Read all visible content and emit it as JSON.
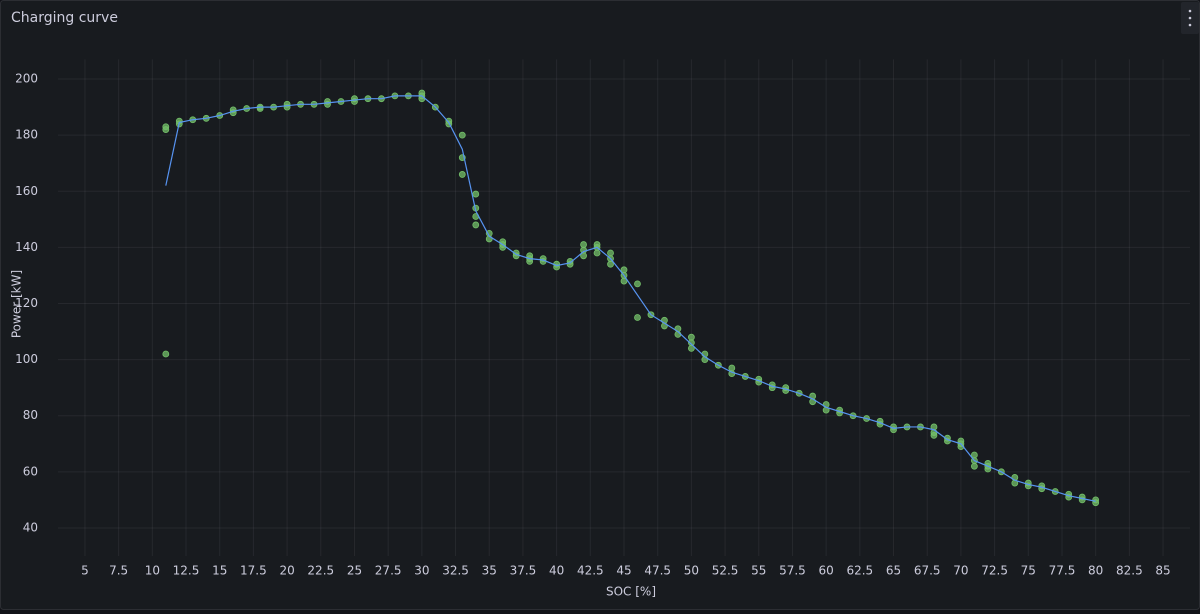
{
  "chart_data": {
    "type": "scatter",
    "title": "Charging curve",
    "x_label": "SOC [%]",
    "y_label": "Power [kW]",
    "xlim": [
      3,
      87
    ],
    "ylim": [
      30,
      207
    ],
    "xticks": [
      5,
      7.5,
      10,
      12.5,
      15,
      17.5,
      20,
      22.5,
      25,
      27.5,
      30,
      32.5,
      35,
      37.5,
      40,
      42.5,
      45,
      47.5,
      50,
      52.5,
      55,
      57.5,
      60,
      62.5,
      65,
      67.5,
      70,
      72.5,
      75,
      77.5,
      80,
      82.5,
      85
    ],
    "yticks": [
      40,
      60,
      80,
      100,
      120,
      140,
      160,
      180,
      200
    ],
    "grid": true,
    "series": [
      {
        "type": "scatter",
        "color": "#73bf69",
        "x": [
          11,
          11,
          11,
          12,
          12,
          13,
          14,
          15,
          16,
          16,
          17,
          18,
          18,
          19,
          20,
          20,
          21,
          22,
          23,
          23,
          24,
          25,
          25,
          26,
          27,
          28,
          29,
          30,
          30,
          30,
          31,
          32,
          32,
          33,
          33,
          33,
          34,
          34,
          34,
          34,
          35,
          35,
          36,
          36,
          36,
          37,
          37,
          38,
          38,
          38,
          39,
          39,
          40,
          40,
          41,
          41,
          42,
          42,
          42,
          43,
          43,
          43,
          44,
          44,
          44,
          45,
          45,
          45,
          46,
          46,
          47,
          48,
          48,
          49,
          49,
          50,
          50,
          50,
          51,
          51,
          52,
          53,
          53,
          54,
          55,
          55,
          56,
          56,
          57,
          57,
          58,
          59,
          59,
          60,
          60,
          61,
          61,
          62,
          63,
          64,
          64,
          65,
          65,
          66,
          67,
          68,
          68,
          68,
          69,
          69,
          70,
          70,
          70,
          71,
          71,
          71,
          72,
          72,
          72,
          73,
          74,
          74,
          75,
          75,
          76,
          76,
          77,
          78,
          78,
          79,
          79,
          80,
          80
        ],
        "values": [
          183,
          182,
          102,
          185,
          184,
          185.5,
          186,
          187,
          189,
          188,
          189.5,
          190,
          189.5,
          190,
          191,
          190,
          191,
          191,
          192,
          191,
          192,
          193,
          192,
          193,
          193,
          194,
          194,
          195,
          194,
          193,
          190,
          185,
          184,
          180,
          172,
          166,
          159,
          154,
          151,
          148,
          145,
          143,
          142,
          141,
          140,
          138,
          137,
          137,
          136,
          135,
          136,
          135,
          134,
          133,
          135,
          134,
          141,
          139,
          137,
          141,
          140,
          138,
          138,
          136,
          134,
          132,
          130,
          128,
          127,
          115,
          116,
          114,
          112,
          111,
          109,
          108,
          106,
          104,
          102,
          100,
          98,
          97,
          95,
          94,
          93,
          92,
          91,
          90,
          90,
          89,
          88,
          87,
          85,
          84,
          82,
          82,
          81,
          80,
          79,
          78,
          77,
          76,
          75,
          76,
          76,
          76,
          74,
          73,
          72,
          71,
          71,
          70,
          69,
          66,
          64,
          62,
          63,
          62,
          61,
          60,
          58,
          56,
          56,
          55,
          55,
          54,
          53,
          52,
          51,
          51,
          50,
          50,
          49
        ]
      },
      {
        "type": "line",
        "color": "#5794f2",
        "x": [
          11,
          12,
          13,
          14,
          15,
          16,
          17,
          18,
          19,
          20,
          21,
          22,
          23,
          24,
          25,
          26,
          27,
          28,
          29,
          30,
          31,
          32,
          33,
          34,
          35,
          36,
          37,
          38,
          39,
          40,
          41,
          42,
          43,
          44,
          45,
          46,
          47,
          48,
          49,
          50,
          51,
          52,
          53,
          54,
          55,
          56,
          57,
          58,
          59,
          60,
          61,
          62,
          63,
          64,
          65,
          66,
          67,
          68,
          69,
          70,
          71,
          72,
          73,
          74,
          75,
          76,
          77,
          78,
          79,
          80
        ],
        "values": [
          162,
          184.5,
          185.5,
          186,
          187,
          188.5,
          189.5,
          190,
          190,
          190.5,
          191,
          191,
          191.5,
          192,
          192.5,
          193,
          193,
          194,
          194,
          194,
          190,
          184.5,
          175,
          153,
          144,
          141,
          137.5,
          136,
          135.5,
          133.5,
          134.5,
          138.5,
          140,
          136,
          130,
          123,
          116,
          113,
          110,
          105.5,
          101,
          98,
          95.5,
          94,
          92.5,
          90.5,
          89.5,
          88,
          86,
          83,
          81.5,
          80,
          79,
          77.5,
          75.5,
          76,
          76,
          75,
          71.5,
          70,
          64,
          62,
          60,
          57,
          55.5,
          54.5,
          53,
          51.5,
          50.5,
          49.5
        ]
      }
    ]
  }
}
